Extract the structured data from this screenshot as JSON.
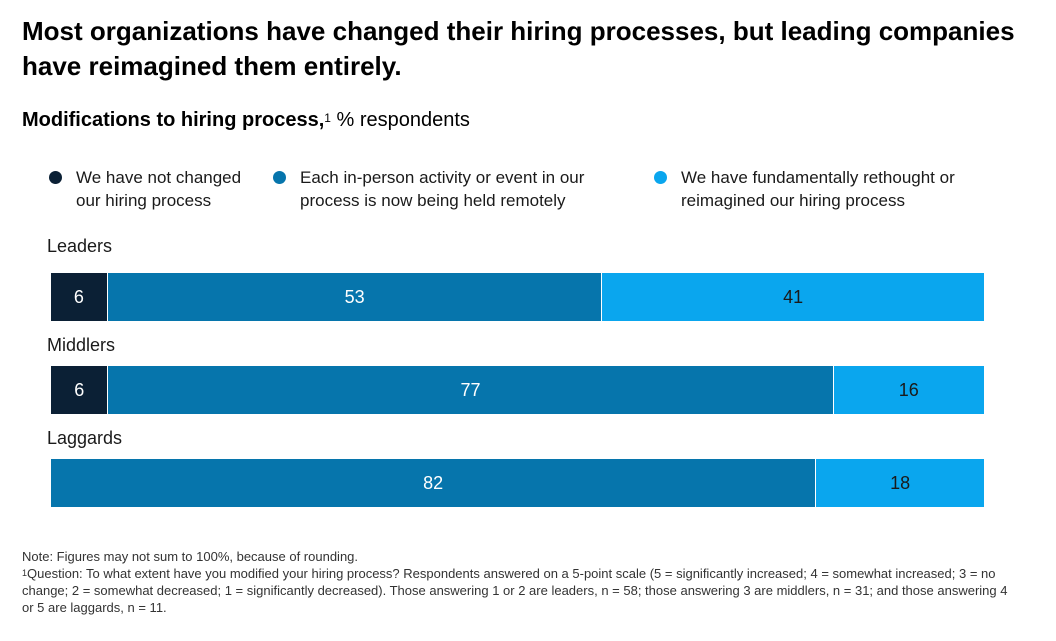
{
  "header": {
    "title": "Most organizations have changed their hiring processes, but leading companies have reimagined them entirely.",
    "subtitle_bold": "Modifications to hiring process,",
    "subtitle_sup": "1",
    "subtitle_unit": " % respondents"
  },
  "colors": {
    "not_changed": "#0b2035",
    "remote": "#0675ac",
    "reimagined": "#0aa6ee"
  },
  "chart_data": {
    "type": "bar",
    "orientation": "horizontal",
    "stacked": true,
    "legend_position": "top",
    "categories": [
      "Leaders",
      "Middlers",
      "Laggards"
    ],
    "series": [
      {
        "name": "We have not changed\nour hiring process",
        "values": [
          6,
          6,
          0
        ],
        "color": "#0b2035"
      },
      {
        "name": "Each in-person activity or event in our\nprocess is now being held remotely",
        "values": [
          53,
          77,
          82
        ],
        "color": "#0675ac"
      },
      {
        "name": "We have fundamentally rethought or\nreimagined our hiring process",
        "values": [
          41,
          16,
          18
        ],
        "color": "#0aa6ee"
      }
    ]
  },
  "notes": {
    "note": "Note: Figures may not sum to 100%, because of rounding.",
    "footnote_marker": "1",
    "footnote": "Question: To what extent have you modified your hiring process? Respondents answered on a 5-point scale (5 = significantly increased; 4 = somewhat increased; 3 = no change; 2 = somewhat decreased; 1 = significantly decreased). Those answering 1 or 2 are leaders, n = 58; those answering 3 are middlers, n = 31; and those answering 4 or 5 are laggards, n = 11."
  }
}
